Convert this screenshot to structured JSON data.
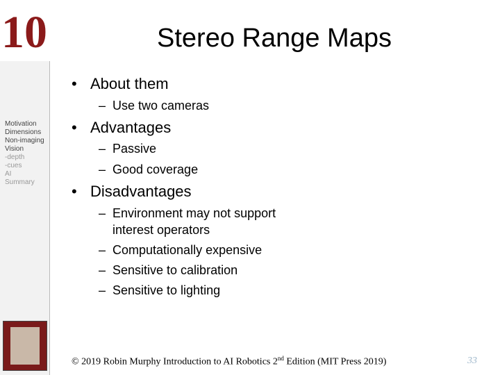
{
  "slide_label": "10",
  "title": "Stereo Range Maps",
  "sidebar": [
    "Motivation",
    "Dimensions",
    "Non-imaging",
    "Vision",
    "-depth",
    "-cues",
    "AI",
    "Summary"
  ],
  "bullets": [
    {
      "text": "About them",
      "sub": [
        "Use two cameras"
      ]
    },
    {
      "text": "Advantages",
      "sub": [
        "Passive",
        "Good coverage"
      ]
    },
    {
      "text": "Disadvantages",
      "sub": [
        "Environment may not support interest operators",
        "Computationally expensive",
        "Sensitive to calibration",
        "Sensitive to lighting"
      ]
    }
  ],
  "footer": {
    "text": "© 2019 Robin Murphy Introduction to AI Robotics 2",
    "sup": "nd",
    "rest": " Edition (MIT Press 2019)"
  },
  "page_number": "33"
}
